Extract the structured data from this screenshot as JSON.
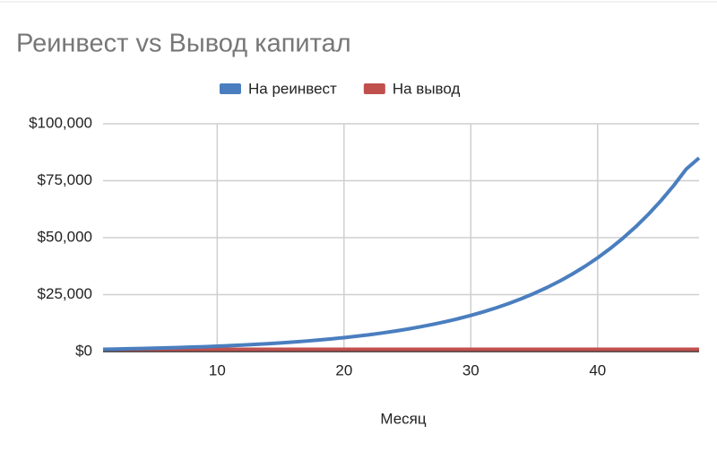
{
  "chart_data": {
    "type": "line",
    "title": "Реинвест vs Вывод капитал",
    "x_label": "Месяц",
    "x": [
      1,
      2,
      3,
      4,
      5,
      6,
      7,
      8,
      9,
      10,
      11,
      12,
      13,
      14,
      15,
      16,
      17,
      18,
      19,
      20,
      21,
      22,
      23,
      24,
      25,
      26,
      27,
      28,
      29,
      30,
      31,
      32,
      33,
      34,
      35,
      36,
      37,
      38,
      39,
      40,
      41,
      42,
      43,
      44,
      45,
      46,
      47,
      48
    ],
    "series": [
      {
        "name": "На реинвест",
        "color": "#4a7ebf",
        "values": [
          1000,
          1100,
          1210,
          1330,
          1460,
          1610,
          1770,
          1950,
          2140,
          2360,
          2590,
          2850,
          3140,
          3450,
          3800,
          4180,
          4600,
          5050,
          5560,
          6120,
          6730,
          7400,
          8140,
          8950,
          9850,
          10840,
          11920,
          13110,
          14420,
          15860,
          17450,
          19190,
          21110,
          23230,
          25550,
          28100,
          30910,
          34000,
          37400,
          41150,
          45260,
          49790,
          54760,
          60240,
          66260,
          72890,
          80180,
          85000
        ]
      },
      {
        "name": "На вывод",
        "color": "#c0504d",
        "values": [
          1000,
          1000,
          1000,
          1000,
          1000,
          1000,
          1000,
          1000,
          1000,
          1000,
          1000,
          1000,
          1000,
          1000,
          1000,
          1000,
          1000,
          1000,
          1000,
          1000,
          1000,
          1000,
          1000,
          1000,
          1000,
          1000,
          1000,
          1000,
          1000,
          1000,
          1000,
          1000,
          1000,
          1000,
          1000,
          1000,
          1000,
          1000,
          1000,
          1000,
          1000,
          1000,
          1000,
          1000,
          1000,
          1000,
          1000,
          1000
        ]
      }
    ],
    "xlim": [
      1,
      48
    ],
    "xticks": [
      10,
      20,
      30,
      40
    ],
    "ylim": [
      0,
      100000
    ],
    "yticks": [
      {
        "value": 0,
        "label": "$0"
      },
      {
        "value": 25000,
        "label": "$25,000"
      },
      {
        "value": 50000,
        "label": "$50,000"
      },
      {
        "value": 75000,
        "label": "$75,000"
      },
      {
        "value": 100000,
        "label": "$100,000"
      }
    ],
    "grid": true,
    "legend": "top"
  }
}
